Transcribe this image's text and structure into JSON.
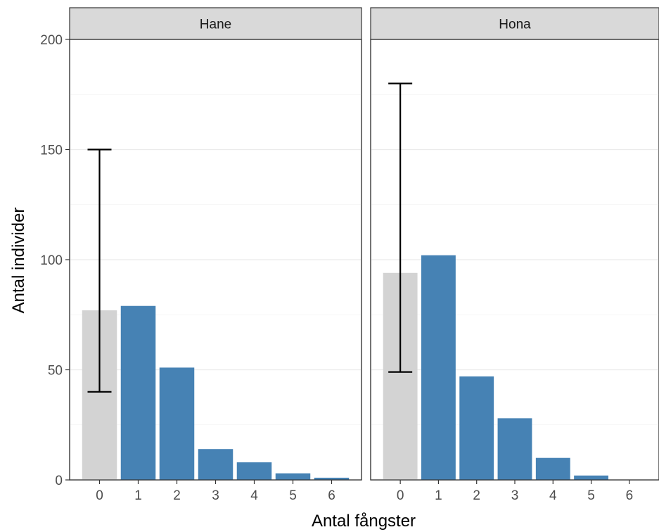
{
  "chart_data": {
    "type": "bar",
    "xlabel": "Antal fångster",
    "ylabel": "Antal individer",
    "ylim": [
      0,
      200
    ],
    "y_ticks": [
      0,
      50,
      100,
      150,
      200
    ],
    "categories": [
      "0",
      "1",
      "2",
      "3",
      "4",
      "5",
      "6"
    ],
    "colors": {
      "observed": "#4682b4",
      "estimated": "#d3d3d3"
    },
    "panels": [
      {
        "name": "Hane",
        "values": [
          77,
          79,
          51,
          14,
          8,
          3,
          1
        ],
        "estimated_index": 0,
        "error_bar": {
          "x": "0",
          "low": 40,
          "high": 150
        }
      },
      {
        "name": "Hona",
        "values": [
          94,
          102,
          47,
          28,
          10,
          2,
          0
        ],
        "estimated_index": 0,
        "error_bar": {
          "x": "0",
          "low": 49,
          "high": 180
        }
      }
    ]
  }
}
